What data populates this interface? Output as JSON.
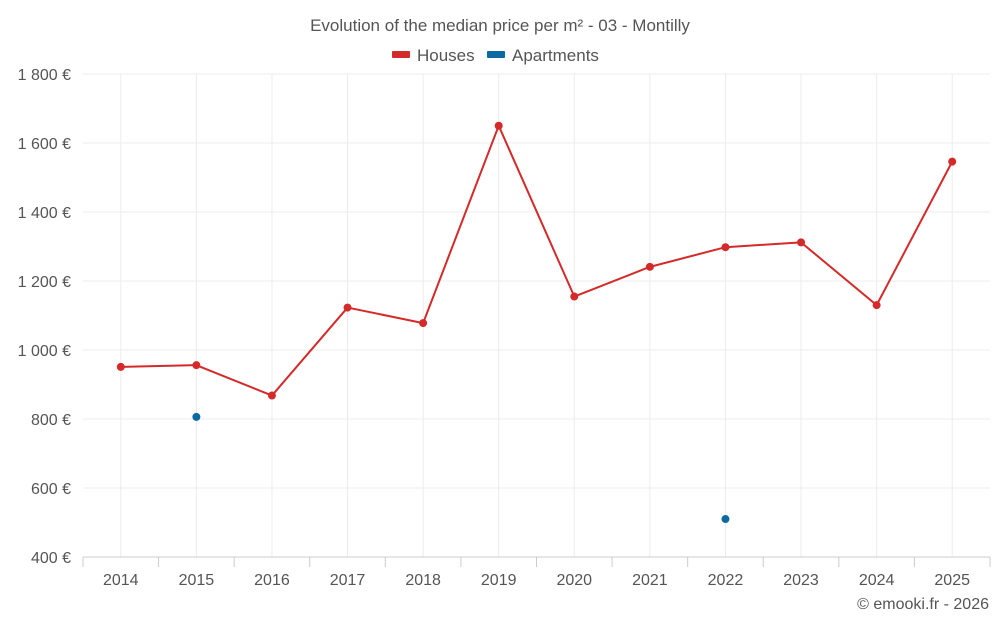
{
  "chart_data": {
    "type": "line",
    "title": "Evolution of the median price per m² - 03 - Montilly",
    "categories": [
      "2014",
      "2015",
      "2016",
      "2017",
      "2018",
      "2019",
      "2020",
      "2021",
      "2022",
      "2023",
      "2024",
      "2025"
    ],
    "series": [
      {
        "name": "Houses",
        "color": "#d42a2a",
        "values": [
          951,
          956,
          868,
          1123,
          1078,
          1650,
          1155,
          1241,
          1298,
          1312,
          1130,
          1546
        ]
      },
      {
        "name": "Apartments",
        "color": "#0a6aa1",
        "values": [
          null,
          806,
          null,
          null,
          null,
          null,
          null,
          null,
          510,
          null,
          null,
          null
        ]
      }
    ],
    "ylim": [
      400,
      1800
    ],
    "yticks": [
      400,
      600,
      800,
      1000,
      1200,
      1400,
      1600,
      1800
    ],
    "ytick_labels": [
      "400 €",
      "600 €",
      "800 €",
      "1 000 €",
      "1 200 €",
      "1 400 €",
      "1 600 €",
      "1 800 €"
    ],
    "xlabel": "",
    "ylabel": "",
    "grid": true,
    "legend_position": "top-center",
    "credit": "© emooki.fr - 2026"
  }
}
